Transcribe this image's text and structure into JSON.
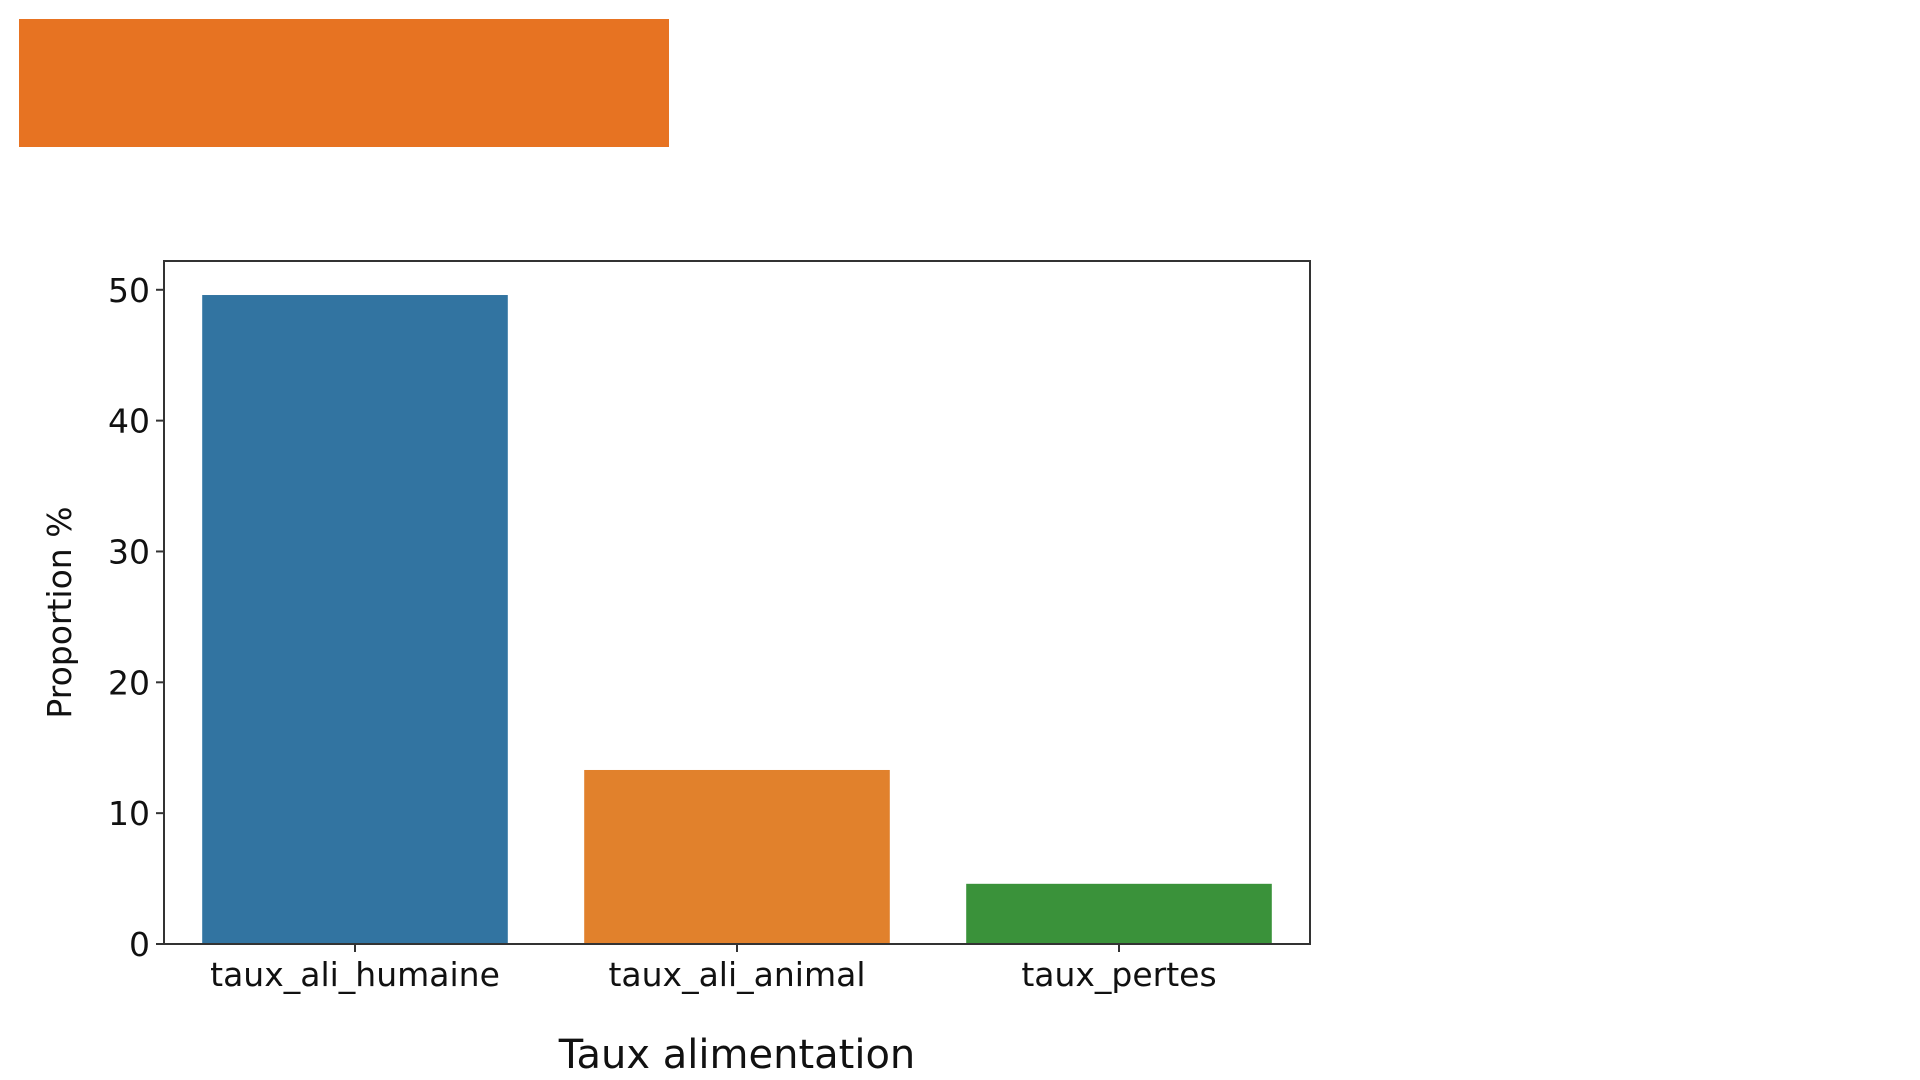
{
  "header": {
    "banner_color": "#e77322"
  },
  "chart_data": {
    "type": "bar",
    "categories": [
      "taux_ali_humaine",
      "taux_ali_animal",
      "taux_pertes"
    ],
    "values": [
      49.6,
      13.3,
      4.6
    ],
    "colors": [
      "#3274a1",
      "#e1812c",
      "#3a923a"
    ],
    "xlabel": "Taux alimentation",
    "ylabel": "Proportion %",
    "ylim": [
      0,
      52.2
    ],
    "yticks": [
      0,
      10,
      20,
      30,
      40,
      50
    ],
    "grid": false,
    "legend": false
  }
}
